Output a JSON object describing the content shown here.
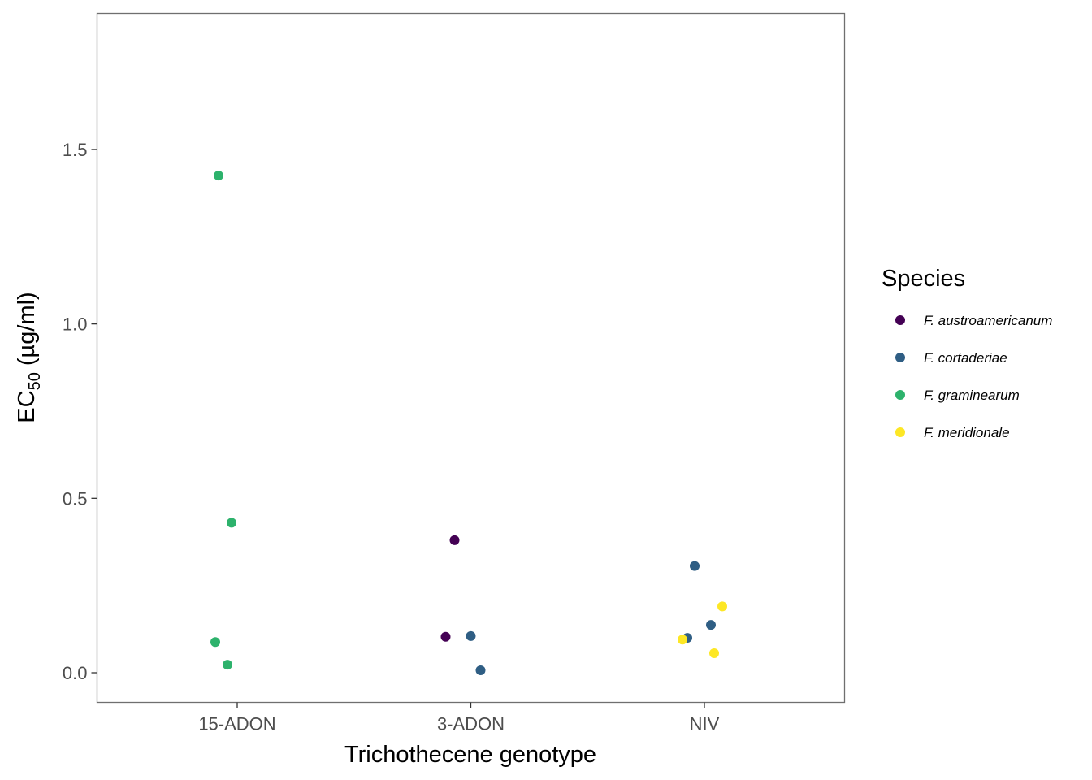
{
  "chart_data": {
    "type": "scatter",
    "categories": [
      "15-ADON",
      "3-ADON",
      "NIV"
    ],
    "xlabel": "Trichothecene genotype",
    "ylabel": {
      "base": "EC",
      "subscript": "50",
      "suffix": " (µg/ml)"
    },
    "ylim": [
      -0.085,
      1.89
    ],
    "yticks": [
      0.0,
      0.5,
      1.0,
      1.5
    ],
    "ytick_labels": [
      "0.0",
      "0.5",
      "1.0",
      "1.5"
    ],
    "grid": false,
    "legend": {
      "title": "Species",
      "position": "right"
    },
    "series": [
      {
        "name": "F. austroamericanum",
        "color": "#440154",
        "points": [
          {
            "x": "3-ADON",
            "y": 0.38
          },
          {
            "x": "3-ADON",
            "y": 0.103
          }
        ]
      },
      {
        "name": "F. cortaderiae",
        "color": "#2F5E84",
        "points": [
          {
            "x": "3-ADON",
            "y": 0.105
          },
          {
            "x": "3-ADON",
            "y": 0.007
          },
          {
            "x": "NIV",
            "y": 0.306
          },
          {
            "x": "NIV",
            "y": 0.137
          },
          {
            "x": "NIV",
            "y": 0.1
          }
        ]
      },
      {
        "name": "F. graminearum",
        "color": "#2DB26C",
        "points": [
          {
            "x": "15-ADON",
            "y": 1.425
          },
          {
            "x": "15-ADON",
            "y": 0.43
          },
          {
            "x": "15-ADON",
            "y": 0.088
          },
          {
            "x": "15-ADON",
            "y": 0.023
          }
        ]
      },
      {
        "name": "F. meridionale",
        "color": "#FDE725",
        "points": [
          {
            "x": "NIV",
            "y": 0.19
          },
          {
            "x": "NIV",
            "y": 0.095
          },
          {
            "x": "NIV",
            "y": 0.056
          }
        ]
      }
    ]
  }
}
